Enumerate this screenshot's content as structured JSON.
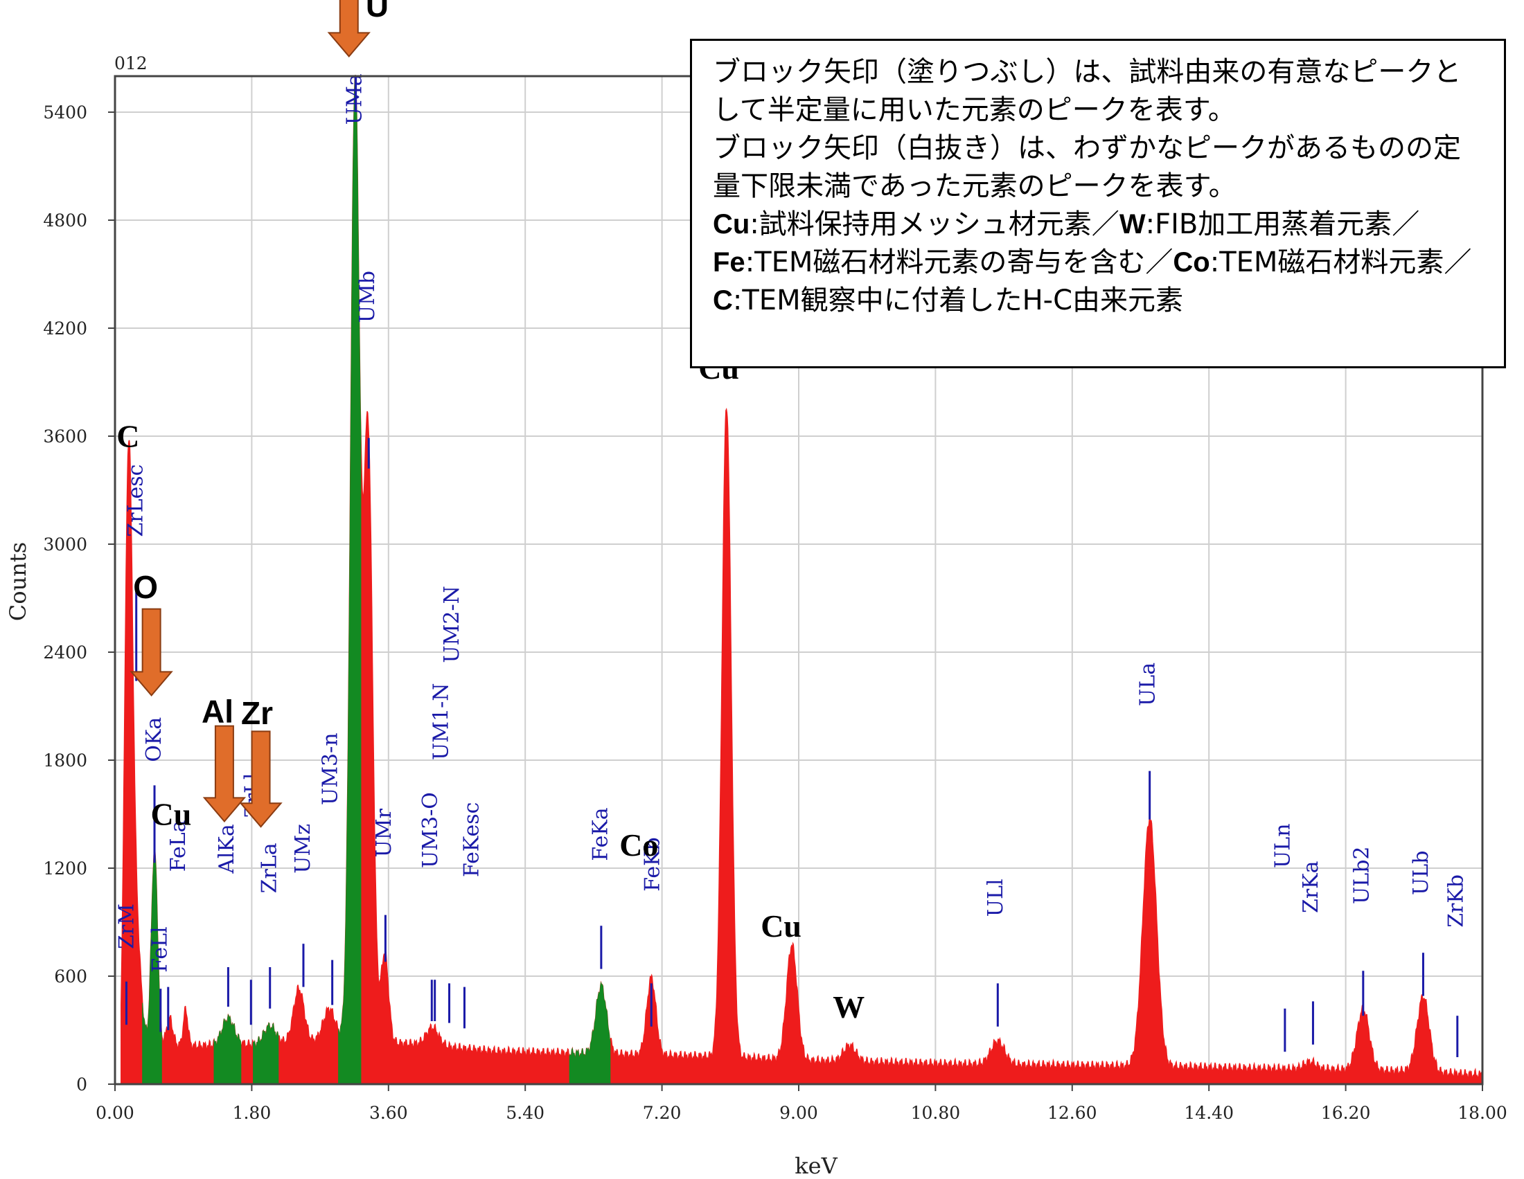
{
  "chart_data": {
    "type": "area",
    "title": "",
    "corner_label": "012",
    "xlabel": "keV",
    "ylabel": "Counts",
    "xlim": [
      0,
      18
    ],
    "ylim": [
      0,
      5600
    ],
    "x_ticks": [
      "0.00",
      "1.80",
      "3.60",
      "5.40",
      "7.20",
      "9.00",
      "10.80",
      "12.60",
      "14.40",
      "16.20",
      "18.00"
    ],
    "y_ticks": [
      "0",
      "600",
      "1200",
      "1800",
      "2400",
      "3000",
      "3600",
      "4200",
      "4800",
      "5400"
    ],
    "grid": true,
    "colors": {
      "spectrum": "#ee1c1c",
      "quantified": "#138a22",
      "marker": "#1a1aa8",
      "arrow": "#e06d2a",
      "arrow_edge": "#8a3c12"
    },
    "spectrum_peaks": [
      {
        "x": 0.18,
        "y": 3240,
        "w": 0.05
      },
      {
        "x": 0.28,
        "y": 600,
        "w": 0.06
      },
      {
        "x": 0.52,
        "y": 1080,
        "w": 0.04
      },
      {
        "x": 0.72,
        "y": 150,
        "w": 0.04
      },
      {
        "x": 0.93,
        "y": 200,
        "w": 0.03
      },
      {
        "x": 1.49,
        "y": 150,
        "w": 0.08
      },
      {
        "x": 2.04,
        "y": 100,
        "w": 0.08
      },
      {
        "x": 2.42,
        "y": 300,
        "w": 0.07
      },
      {
        "x": 2.82,
        "y": 180,
        "w": 0.08
      },
      {
        "x": 3.16,
        "y": 5300,
        "w": 0.06
      },
      {
        "x": 3.33,
        "y": 3380,
        "w": 0.06
      },
      {
        "x": 3.55,
        "y": 500,
        "w": 0.05
      },
      {
        "x": 4.18,
        "y": 100,
        "w": 0.08
      },
      {
        "x": 6.4,
        "y": 380,
        "w": 0.07
      },
      {
        "x": 7.06,
        "y": 430,
        "w": 0.06
      },
      {
        "x": 8.05,
        "y": 3620,
        "w": 0.06
      },
      {
        "x": 8.91,
        "y": 640,
        "w": 0.07
      },
      {
        "x": 9.67,
        "y": 90,
        "w": 0.08
      },
      {
        "x": 11.62,
        "y": 130,
        "w": 0.09
      },
      {
        "x": 13.62,
        "y": 1380,
        "w": 0.09
      },
      {
        "x": 15.73,
        "y": 40,
        "w": 0.08
      },
      {
        "x": 16.43,
        "y": 340,
        "w": 0.08
      },
      {
        "x": 17.22,
        "y": 420,
        "w": 0.08
      }
    ],
    "background": [
      [
        0.08,
        0
      ],
      [
        0.12,
        200
      ],
      [
        0.4,
        220
      ],
      [
        1.0,
        210
      ],
      [
        2.0,
        220
      ],
      [
        3.0,
        240
      ],
      [
        4.0,
        220
      ],
      [
        5.0,
        180
      ],
      [
        6.0,
        170
      ],
      [
        7.0,
        160
      ],
      [
        8.0,
        150
      ],
      [
        9.0,
        130
      ],
      [
        10.0,
        120
      ],
      [
        11.0,
        110
      ],
      [
        12.0,
        105
      ],
      [
        13.0,
        100
      ],
      [
        14.0,
        95
      ],
      [
        15.0,
        85
      ],
      [
        16.0,
        80
      ],
      [
        17.0,
        70
      ],
      [
        18.0,
        50
      ]
    ],
    "green_bands": [
      [
        0.36,
        0.62
      ],
      [
        1.3,
        1.66
      ],
      [
        1.82,
        2.15
      ],
      [
        2.94,
        3.24
      ],
      [
        5.98,
        6.52
      ]
    ],
    "line_markers": [
      {
        "label": "ZrM",
        "x": 0.15,
        "top": 570,
        "bottom": 330,
        "tx": 0.04,
        "ty": 750
      },
      {
        "label": "ZrLesc",
        "x": 0.28,
        "top": 2760,
        "bottom": 2240,
        "tx": 0.16,
        "ty": 3040
      },
      {
        "label": "OKa",
        "x": 0.52,
        "top": 1660,
        "bottom": 1230,
        "tx": 0.4,
        "ty": 1790
      },
      {
        "label": "FeLl",
        "x": 0.6,
        "top": 530,
        "bottom": 290,
        "tx": 0.48,
        "ty": 620
      },
      {
        "label": "FeLa",
        "x": 0.7,
        "top": 540,
        "bottom": 300,
        "tx": 0.72,
        "ty": 1180
      },
      {
        "label": "AlKa",
        "x": 1.49,
        "top": 650,
        "bottom": 430,
        "tx": 1.36,
        "ty": 1170
      },
      {
        "label": "ZrLl",
        "x": 1.79,
        "top": 580,
        "bottom": 330,
        "tx": 1.7,
        "ty": 1480
      },
      {
        "label": "ZrLa",
        "x": 2.04,
        "top": 650,
        "bottom": 420,
        "tx": 1.92,
        "ty": 1060
      },
      {
        "label": "UMz",
        "x": 2.48,
        "top": 780,
        "bottom": 540,
        "tx": 2.36,
        "ty": 1170
      },
      {
        "label": "UM3-n",
        "x": 2.86,
        "top": 690,
        "bottom": 440,
        "tx": 2.72,
        "ty": 1550
      },
      {
        "label": "UMa",
        "x": 3.17,
        "top": 5600,
        "bottom": 5400,
        "tx": 3.04,
        "ty": 5330
      },
      {
        "label": "UMb",
        "x": 3.34,
        "top": 3590,
        "bottom": 3420,
        "tx": 3.21,
        "ty": 4230
      },
      {
        "label": "UMr",
        "x": 3.56,
        "top": 940,
        "bottom": 680,
        "tx": 3.43,
        "ty": 1260
      },
      {
        "label": "UM3-O",
        "x": 4.17,
        "top": 580,
        "bottom": 350,
        "tx": 4.04,
        "ty": 1200
      },
      {
        "label": "UM1-N",
        "x": 4.21,
        "top": 580,
        "bottom": 350,
        "tx": 4.18,
        "ty": 1800
      },
      {
        "label": "UM2-N",
        "x": 4.4,
        "top": 560,
        "bottom": 340,
        "tx": 4.32,
        "ty": 2340
      },
      {
        "label": "FeKesc",
        "x": 4.6,
        "top": 540,
        "bottom": 310,
        "tx": 4.58,
        "ty": 1150
      },
      {
        "label": "FeKa",
        "x": 6.4,
        "top": 880,
        "bottom": 640,
        "tx": 6.28,
        "ty": 1240
      },
      {
        "label": "FeKb",
        "x": 7.06,
        "top": 560,
        "bottom": 320,
        "tx": 6.96,
        "ty": 1070
      },
      {
        "label": "ULl",
        "x": 11.62,
        "top": 560,
        "bottom": 320,
        "tx": 11.48,
        "ty": 930
      },
      {
        "label": "ULa",
        "x": 13.62,
        "top": 1740,
        "bottom": 1470,
        "tx": 13.48,
        "ty": 2100
      },
      {
        "label": "ULn",
        "x": 15.4,
        "top": 420,
        "bottom": 180,
        "tx": 15.26,
        "ty": 1200
      },
      {
        "label": "ZrKa",
        "x": 15.77,
        "top": 460,
        "bottom": 220,
        "tx": 15.63,
        "ty": 950
      },
      {
        "label": "ULb2",
        "x": 16.43,
        "top": 630,
        "bottom": 380,
        "tx": 16.3,
        "ty": 1000
      },
      {
        "label": "ULb",
        "x": 17.22,
        "top": 730,
        "bottom": 490,
        "tx": 17.08,
        "ty": 1050
      },
      {
        "label": "ZrKb",
        "x": 17.67,
        "top": 380,
        "bottom": 150,
        "tx": 17.54,
        "ty": 870
      }
    ],
    "element_labels": [
      {
        "label": "C",
        "x": 0.02,
        "y": 3540,
        "style": "serif"
      },
      {
        "label": "O",
        "x": 0.24,
        "y": 2700,
        "style": "sans"
      },
      {
        "label": "Cu",
        "x": 0.47,
        "y": 1440,
        "style": "serif"
      },
      {
        "label": "Al",
        "x": 1.14,
        "y": 2010,
        "style": "sans"
      },
      {
        "label": "Zr",
        "x": 1.66,
        "y": 2000,
        "style": "sans"
      },
      {
        "label": "U",
        "x": 3.3,
        "y": 5930,
        "style": "sans"
      },
      {
        "label": "Cu",
        "x": 7.68,
        "y": 3920,
        "style": "serif"
      },
      {
        "label": "Co",
        "x": 6.64,
        "y": 1270,
        "style": "serif"
      },
      {
        "label": "Cu",
        "x": 8.5,
        "y": 820,
        "style": "serif"
      },
      {
        "label": "W",
        "x": 9.45,
        "y": 370,
        "style": "serif"
      }
    ],
    "arrows": [
      {
        "element": "O",
        "x": 0.48,
        "y_top": 2640,
        "y_tip": 2160,
        "filled": true
      },
      {
        "element": "Al",
        "x": 1.44,
        "y_top": 1990,
        "y_tip": 1460,
        "filled": true
      },
      {
        "element": "Zr",
        "x": 1.92,
        "y_top": 1960,
        "y_tip": 1430,
        "filled": true
      },
      {
        "element": "U",
        "x": 3.08,
        "y_top": 6200,
        "y_tip": 5710,
        "filled": true
      }
    ]
  },
  "legend": {
    "line1": "ブロック矢印（塗りつぶし）は、試料由来の有意なピークとして半定量に用いた元素のピークを表す。",
    "line2": "ブロック矢印（白抜き）は、わずかなピークがあるものの定量下限未満であった元素のピークを表す。",
    "cu_sym": "Cu",
    "cu_desc": ":試料保持用メッシュ材元素／",
    "w_sym": "W",
    "w_desc": ":FIB加工用蒸着元素／",
    "fe_sym": "Fe",
    "fe_desc": ":TEM磁石材料元素の寄与を含む／",
    "co_sym": "Co",
    "co_desc": ":TEM磁石材料元素／",
    "c_sym": "C",
    "c_desc": ":TEM観察中に付着したH-C由来元素"
  }
}
